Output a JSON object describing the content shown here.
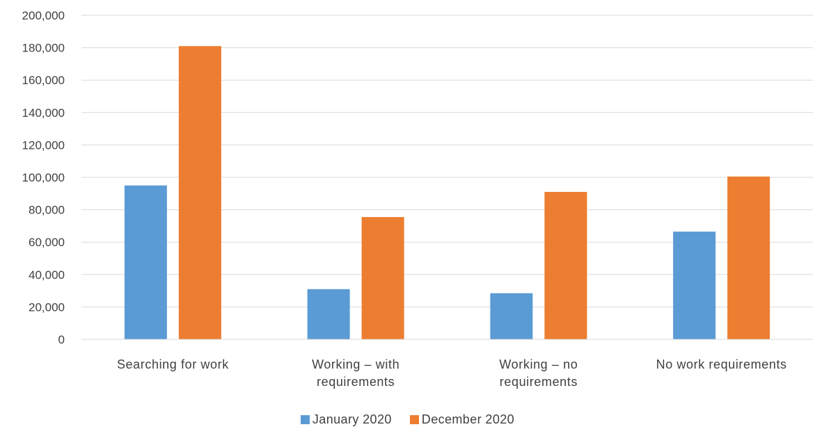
{
  "chart_data": {
    "type": "bar",
    "title": "",
    "xlabel": "",
    "ylabel": "",
    "categories": [
      [
        "Searching for work"
      ],
      [
        "Working – with",
        "requirements"
      ],
      [
        "Working – no",
        "requirements"
      ],
      [
        "No work requirements"
      ]
    ],
    "series": [
      {
        "name": "January 2020",
        "color": "#5b9bd5",
        "values": [
          95000,
          31000,
          28500,
          66500
        ]
      },
      {
        "name": "December 2020",
        "color": "#ed7d31",
        "values": [
          181000,
          75500,
          91000,
          100500
        ]
      }
    ],
    "ylim": [
      0,
      200000
    ],
    "yticks": [
      "0",
      "20,000",
      "40,000",
      "60,000",
      "80,000",
      "100,000",
      "120,000",
      "140,000",
      "160,000",
      "180,000",
      "200,000"
    ],
    "ytick_values": [
      0,
      20000,
      40000,
      60000,
      80000,
      100000,
      120000,
      140000,
      160000,
      180000,
      200000
    ],
    "grid": true,
    "gridline_color": "#d9d9d9",
    "legend_position": "bottom"
  }
}
